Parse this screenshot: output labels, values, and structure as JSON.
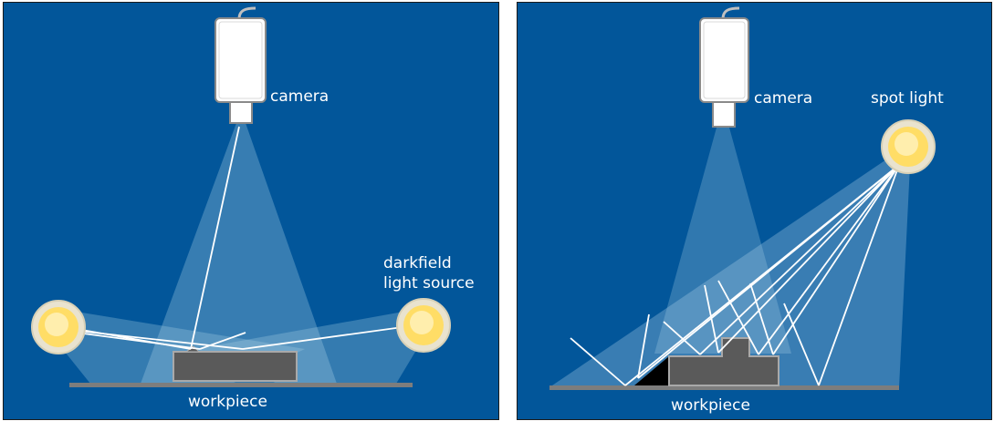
{
  "left_panel": {
    "camera_label": "camera",
    "light_label_line1": "darkfield",
    "light_label_line2": "light source",
    "workpiece_label": "workpiece"
  },
  "right_panel": {
    "camera_label": "camera",
    "light_label": "spot light",
    "workpiece_label": "workpiece"
  },
  "colors": {
    "background": "#02569a",
    "beam": "#a9cfe6",
    "ray": "#ffffff",
    "workpiece": "#5a5a5a",
    "shadow": "#000000",
    "lamp": "#ffe27a",
    "camera_body": "#ffffff"
  }
}
